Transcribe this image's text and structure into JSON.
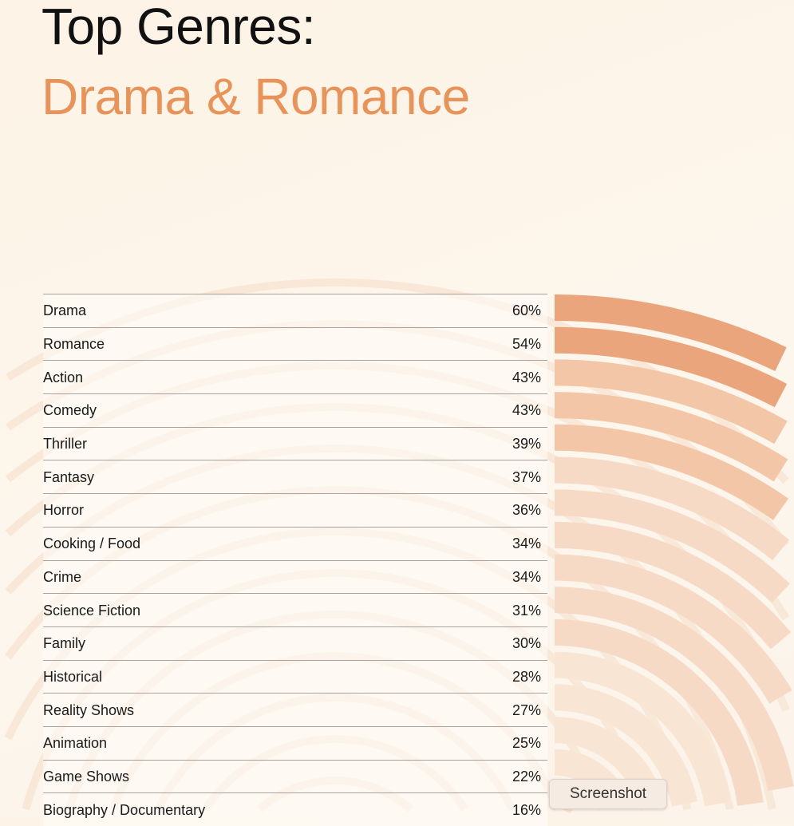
{
  "header": {
    "title_line1": "Top Genres:",
    "title_line2": "Drama & Romance"
  },
  "colors": {
    "accent": "#e8935a",
    "band_dark": "#eba57c",
    "band_mid": "#f4c6a8",
    "band_light": "#f7dac5",
    "band_lightest": "#f9e5d4"
  },
  "chart_data": {
    "type": "radial-bar",
    "categories": [
      "Drama",
      "Romance",
      "Action",
      "Comedy",
      "Thriller",
      "Fantasy",
      "Horror",
      "Cooking / Food",
      "Crime",
      "Science Fiction",
      "Family",
      "Historical",
      "Reality Shows",
      "Animation",
      "Game Shows",
      "Biography / Documentary"
    ],
    "values": [
      60,
      54,
      43,
      43,
      39,
      37,
      36,
      34,
      34,
      31,
      30,
      28,
      27,
      25,
      22,
      16
    ],
    "labels": [
      "60%",
      "54%",
      "43%",
      "43%",
      "39%",
      "37%",
      "36%",
      "34%",
      "34%",
      "31%",
      "30%",
      "28%",
      "27%",
      "25%",
      "22%",
      "16%"
    ],
    "unit": "%"
  },
  "tooltip": {
    "label": "Screenshot"
  }
}
